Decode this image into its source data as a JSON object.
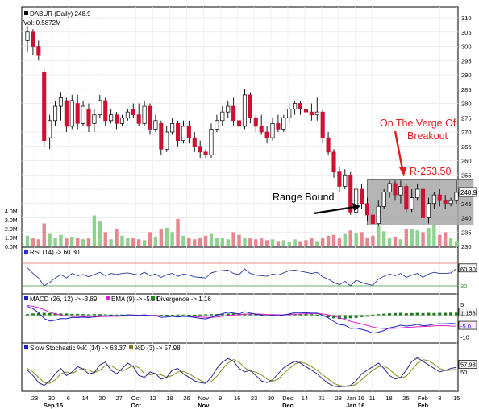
{
  "chart_data": [
    {
      "type": "candlestick",
      "panel": "price",
      "title": "DABUR (Daily) 248.9",
      "volume_label": "Vol: 0.5872M",
      "ylim": [
        230,
        310
      ],
      "y_ticks": [
        230,
        235,
        240,
        245,
        250,
        255,
        260,
        265,
        270,
        275,
        280,
        285,
        290,
        295,
        300,
        305,
        310
      ],
      "last_price_badge": "248.9",
      "volume_ticks": [
        "4.0M",
        "3.0M",
        "2.0M",
        "1.0M",
        "0.0M"
      ],
      "volume_ylim": [
        0,
        4.0
      ],
      "range_box": {
        "x_from": 61,
        "x_to": 80,
        "y_from": 237.5,
        "y_to": 253.5
      },
      "annotations": {
        "range": "Range Bound",
        "resistance": "R-253.50",
        "breakout_line1": "On The Verge Of",
        "breakout_line2": "Breakout"
      },
      "candles": [
        {
          "o": 302,
          "h": 307,
          "l": 298,
          "c": 305
        },
        {
          "o": 305,
          "h": 306,
          "l": 297,
          "c": 300
        },
        {
          "o": 300,
          "h": 302,
          "l": 295,
          "c": 297
        },
        {
          "o": 291,
          "h": 292,
          "l": 265,
          "c": 267
        },
        {
          "o": 268,
          "h": 276,
          "l": 264,
          "c": 274
        },
        {
          "o": 274,
          "h": 281,
          "l": 272,
          "c": 279
        },
        {
          "o": 279,
          "h": 284,
          "l": 274,
          "c": 282
        },
        {
          "o": 281,
          "h": 282,
          "l": 270,
          "c": 272
        },
        {
          "o": 272,
          "h": 283,
          "l": 271,
          "c": 281
        },
        {
          "o": 280,
          "h": 283,
          "l": 271,
          "c": 273
        },
        {
          "o": 273,
          "h": 281,
          "l": 272,
          "c": 279
        },
        {
          "o": 278,
          "h": 280,
          "l": 270,
          "c": 272
        },
        {
          "o": 273,
          "h": 278,
          "l": 270,
          "c": 276
        },
        {
          "o": 276,
          "h": 283,
          "l": 275,
          "c": 281
        },
        {
          "o": 281,
          "h": 282,
          "l": 272,
          "c": 274
        },
        {
          "o": 274,
          "h": 278,
          "l": 273,
          "c": 276
        },
        {
          "o": 276,
          "h": 277,
          "l": 271,
          "c": 273
        },
        {
          "o": 273,
          "h": 276,
          "l": 272,
          "c": 275
        },
        {
          "o": 275,
          "h": 278,
          "l": 274,
          "c": 277
        },
        {
          "o": 278,
          "h": 280,
          "l": 275,
          "c": 276
        },
        {
          "o": 276,
          "h": 280,
          "l": 272,
          "c": 273
        },
        {
          "o": 273,
          "h": 281,
          "l": 272,
          "c": 279
        },
        {
          "o": 279,
          "h": 280,
          "l": 269,
          "c": 271
        },
        {
          "o": 271,
          "h": 276,
          "l": 270,
          "c": 274
        },
        {
          "o": 273,
          "h": 274,
          "l": 262,
          "c": 264
        },
        {
          "o": 264,
          "h": 272,
          "l": 263,
          "c": 270
        },
        {
          "o": 270,
          "h": 275,
          "l": 269,
          "c": 273
        },
        {
          "o": 273,
          "h": 274,
          "l": 265,
          "c": 267
        },
        {
          "o": 267,
          "h": 274,
          "l": 266,
          "c": 272
        },
        {
          "o": 272,
          "h": 274,
          "l": 266,
          "c": 268
        },
        {
          "o": 268,
          "h": 270,
          "l": 263,
          "c": 265
        },
        {
          "o": 265,
          "h": 267,
          "l": 261,
          "c": 263
        },
        {
          "o": 263,
          "h": 264,
          "l": 261,
          "c": 262
        },
        {
          "o": 262,
          "h": 273,
          "l": 261,
          "c": 271
        },
        {
          "o": 271,
          "h": 276,
          "l": 270,
          "c": 274
        },
        {
          "o": 274,
          "h": 279,
          "l": 272,
          "c": 277
        },
        {
          "o": 277,
          "h": 281,
          "l": 275,
          "c": 279
        },
        {
          "o": 279,
          "h": 282,
          "l": 272,
          "c": 274
        },
        {
          "o": 274,
          "h": 276,
          "l": 270,
          "c": 272
        },
        {
          "o": 272,
          "h": 285,
          "l": 271,
          "c": 283
        },
        {
          "o": 283,
          "h": 284,
          "l": 273,
          "c": 275
        },
        {
          "o": 275,
          "h": 276,
          "l": 270,
          "c": 272
        },
        {
          "o": 272,
          "h": 276,
          "l": 269,
          "c": 270
        },
        {
          "o": 270,
          "h": 272,
          "l": 266,
          "c": 268
        },
        {
          "o": 268,
          "h": 275,
          "l": 267,
          "c": 273
        },
        {
          "o": 273,
          "h": 276,
          "l": 270,
          "c": 271
        },
        {
          "o": 271,
          "h": 276,
          "l": 270,
          "c": 275
        },
        {
          "o": 275,
          "h": 280,
          "l": 273,
          "c": 278
        },
        {
          "o": 278,
          "h": 281,
          "l": 276,
          "c": 280
        },
        {
          "o": 280,
          "h": 281,
          "l": 276,
          "c": 278
        },
        {
          "o": 278,
          "h": 282,
          "l": 276,
          "c": 277
        },
        {
          "o": 277,
          "h": 280,
          "l": 274,
          "c": 276
        },
        {
          "o": 276,
          "h": 282,
          "l": 274,
          "c": 277
        },
        {
          "o": 277,
          "h": 278,
          "l": 266,
          "c": 268
        },
        {
          "o": 268,
          "h": 270,
          "l": 262,
          "c": 263
        },
        {
          "o": 263,
          "h": 264,
          "l": 254,
          "c": 256
        },
        {
          "o": 256,
          "h": 258,
          "l": 249,
          "c": 251
        },
        {
          "o": 251,
          "h": 257,
          "l": 250,
          "c": 255
        },
        {
          "o": 255,
          "h": 256,
          "l": 241,
          "c": 242
        },
        {
          "o": 242,
          "h": 252,
          "l": 240,
          "c": 250
        },
        {
          "o": 250,
          "h": 252,
          "l": 243,
          "c": 245
        },
        {
          "o": 245,
          "h": 247,
          "l": 239,
          "c": 241
        },
        {
          "o": 241,
          "h": 243,
          "l": 237,
          "c": 238
        },
        {
          "o": 238,
          "h": 246,
          "l": 237,
          "c": 244
        },
        {
          "o": 244,
          "h": 250,
          "l": 243,
          "c": 249
        },
        {
          "o": 249,
          "h": 253,
          "l": 247,
          "c": 252
        },
        {
          "o": 252,
          "h": 253,
          "l": 246,
          "c": 248
        },
        {
          "o": 248,
          "h": 253,
          "l": 245,
          "c": 251
        },
        {
          "o": 251,
          "h": 252,
          "l": 242,
          "c": 243
        },
        {
          "o": 243,
          "h": 250,
          "l": 242,
          "c": 247
        },
        {
          "o": 247,
          "h": 252,
          "l": 246,
          "c": 250
        },
        {
          "o": 250,
          "h": 252,
          "l": 239,
          "c": 240
        },
        {
          "o": 240,
          "h": 247,
          "l": 238,
          "c": 245
        },
        {
          "o": 245,
          "h": 249,
          "l": 243,
          "c": 248
        },
        {
          "o": 248,
          "h": 250,
          "l": 244,
          "c": 246
        },
        {
          "o": 246,
          "h": 248,
          "l": 243,
          "c": 245
        },
        {
          "o": 245,
          "h": 247,
          "l": 244,
          "c": 246
        },
        {
          "o": 246,
          "h": 253,
          "l": 245,
          "c": 248.9
        }
      ],
      "volume": [
        1.2,
        0.9,
        0.8,
        2.6,
        1.4,
        1.0,
        1.3,
        0.9,
        1.1,
        1.0,
        0.8,
        0.9,
        3.5,
        2.9,
        1.6,
        0.8,
        2.0,
        1.2,
        1.0,
        0.9,
        0.8,
        0.7,
        1.6,
        1.1,
        1.9,
        2.1,
        1.6,
        3.1,
        1.2,
        1.0,
        0.8,
        0.9,
        1.2,
        1.4,
        1.0,
        0.9,
        0.8,
        1.6,
        1.3,
        1.0,
        0.9,
        0.8,
        0.9,
        0.7,
        0.8,
        0.6,
        0.7,
        0.5,
        0.8,
        0.6,
        0.7,
        0.9,
        0.6,
        1.0,
        1.2,
        1.3,
        0.9,
        1.4,
        1.8,
        1.5,
        1.6,
        1.0,
        1.2,
        2.3,
        1.7,
        0.9,
        1.1,
        0.8,
        1.9,
        2.0,
        1.8,
        1.6,
        2.1,
        2.4,
        1.3,
        1.6,
        0.9,
        0.6
      ],
      "x_tick_labels": [
        "23",
        "30",
        "6",
        "14",
        "20",
        "27",
        "Oct",
        "12",
        "18",
        "26",
        "Nov",
        "9",
        "16",
        "23",
        "30",
        "Dec",
        "14",
        "21",
        "28",
        "Jan 16",
        "11",
        "18",
        "25",
        "Feb",
        "8",
        "15"
      ],
      "month_labels": [
        {
          "text": "Sep 15",
          "after": "30"
        },
        {
          "text": "Oct",
          "at": "Oct"
        },
        {
          "text": "Nov",
          "at": "Nov"
        },
        {
          "text": "Dec",
          "at": "Dec"
        },
        {
          "text": "Jan 16",
          "at": "Jan 16"
        },
        {
          "text": "Feb",
          "at": "Feb"
        }
      ]
    },
    {
      "type": "line",
      "panel": "rsi",
      "legend": "RSI (14) -> 60.30",
      "ylim": [
        30,
        70
      ],
      "y_ticks": [
        "60.30",
        "30"
      ],
      "levels": [
        70,
        30
      ],
      "values": [
        62,
        52,
        44,
        30,
        36,
        44,
        50,
        44,
        52,
        48,
        50,
        46,
        50,
        54,
        48,
        52,
        50,
        52,
        53,
        51,
        49,
        54,
        48,
        51,
        45,
        50,
        52,
        47,
        51,
        49,
        46,
        45,
        44,
        53,
        56,
        57,
        58,
        52,
        50,
        60,
        52,
        49,
        48,
        47,
        51,
        49,
        53,
        57,
        58,
        56,
        54,
        52,
        54,
        46,
        42,
        36,
        32,
        38,
        30,
        40,
        36,
        33,
        31,
        42,
        47,
        51,
        48,
        52,
        45,
        49,
        52,
        45,
        51,
        54,
        52,
        52,
        53,
        60.3
      ]
    },
    {
      "type": "line",
      "panel": "macd",
      "legend_macd": "MACD (26, 12) -> -3.89",
      "legend_ema": "EMA (9) -> -5.04",
      "legend_div": "Divergence -> 1.16",
      "ylim": [
        -12,
        5
      ],
      "y_ticks": [
        "5",
        "1.158",
        "-5.0",
        "-10"
      ],
      "macd": [
        4.0,
        3.0,
        1.2,
        -1.5,
        -2.7,
        -2.3,
        -1.5,
        -1.6,
        -1.0,
        -1.1,
        -0.9,
        -1.1,
        -0.8,
        -0.2,
        -0.4,
        -0.1,
        -0.3,
        -0.1,
        0.2,
        0.1,
        -0.1,
        0.2,
        -0.3,
        -0.2,
        -1.0,
        -0.8,
        -0.5,
        -0.8,
        -0.5,
        -0.7,
        -1.0,
        -1.4,
        -1.7,
        -1.0,
        0.0,
        0.7,
        1.4,
        1.0,
        0.6,
        1.6,
        1.0,
        0.5,
        0.0,
        -0.3,
        0.0,
        -0.2,
        0.1,
        0.6,
        1.2,
        1.2,
        1.1,
        1.0,
        1.0,
        0.0,
        -1.2,
        -2.9,
        -4.3,
        -4.6,
        -6.1,
        -5.9,
        -6.5,
        -7.2,
        -8.2,
        -7.8,
        -7.0,
        -5.8,
        -5.3,
        -4.6,
        -5.0,
        -4.7,
        -4.2,
        -4.9,
        -4.6,
        -4.1,
        -3.9,
        -3.9,
        -3.8,
        -3.89
      ],
      "ema": [
        4.5,
        4.1,
        3.5,
        2.5,
        1.4,
        0.6,
        0.0,
        -0.3,
        -0.5,
        -0.6,
        -0.7,
        -0.8,
        -0.8,
        -0.7,
        -0.6,
        -0.5,
        -0.5,
        -0.4,
        -0.3,
        -0.2,
        -0.2,
        -0.1,
        -0.1,
        -0.1,
        -0.3,
        -0.4,
        -0.4,
        -0.5,
        -0.5,
        -0.5,
        -0.6,
        -0.8,
        -1.0,
        -1.0,
        -0.8,
        -0.5,
        -0.1,
        0.1,
        0.2,
        0.5,
        0.6,
        0.6,
        0.5,
        0.3,
        0.3,
        0.2,
        0.2,
        0.3,
        0.5,
        0.6,
        0.7,
        0.8,
        0.8,
        0.6,
        0.2,
        -0.4,
        -1.2,
        -1.9,
        -2.8,
        -3.4,
        -4.0,
        -4.7,
        -5.4,
        -5.9,
        -6.1,
        -6.1,
        -6.0,
        -5.8,
        -5.6,
        -5.5,
        -5.3,
        -5.2,
        -5.1,
        -4.9,
        -4.8,
        -4.8,
        -5.0,
        -5.04
      ],
      "divergence": [
        0.5,
        0.8,
        1.0,
        1.1,
        1.0,
        1.0,
        0.8,
        0.8,
        0.6,
        0.6,
        0.5,
        0.4,
        0.5,
        0.5,
        0.4,
        0.3,
        0.3,
        0.3,
        0.3,
        0.2,
        0.2,
        0.2,
        0.1,
        0.1,
        0.2,
        0.2,
        0.2,
        0.3,
        0.3,
        0.2,
        0.2,
        0.3,
        0.4,
        0.5,
        0.5,
        0.6,
        0.8,
        0.8,
        0.6,
        0.7,
        0.6,
        0.5,
        0.5,
        0.4,
        0.4,
        0.4,
        0.4,
        0.6,
        0.7,
        0.7,
        0.6,
        0.5,
        0.3,
        -0.5,
        -1.0,
        -1.4,
        -1.7,
        -1.6,
        -1.4,
        -1.2,
        -0.9,
        -0.7,
        0.3,
        0.5,
        0.7,
        0.9,
        1.0,
        1.1,
        0.9,
        1.0,
        1.1,
        1.0,
        1.1,
        1.0,
        1.1,
        1.1,
        1.2,
        1.16
      ]
    },
    {
      "type": "line",
      "panel": "stochastic",
      "legend_k": "Slow Stochastic %K (14) -> 63.37",
      "legend_d": "%D (3) -> 57.98",
      "ylim": [
        0,
        100
      ],
      "y_ticks": [
        "50",
        "57.98"
      ],
      "k": [
        55,
        40,
        20,
        12,
        25,
        45,
        60,
        40,
        50,
        65,
        58,
        45,
        48,
        70,
        78,
        55,
        45,
        60,
        75,
        65,
        40,
        35,
        50,
        45,
        30,
        35,
        55,
        60,
        45,
        35,
        25,
        20,
        18,
        35,
        60,
        78,
        88,
        80,
        60,
        50,
        55,
        40,
        25,
        20,
        28,
        45,
        62,
        72,
        80,
        75,
        65,
        55,
        45,
        30,
        18,
        10,
        8,
        10,
        12,
        25,
        45,
        55,
        65,
        75,
        60,
        40,
        30,
        35,
        55,
        80,
        90,
        80,
        70,
        60,
        50,
        55,
        60,
        63.37
      ],
      "d": [
        60,
        50,
        35,
        20,
        18,
        28,
        45,
        50,
        45,
        55,
        60,
        55,
        48,
        55,
        68,
        68,
        58,
        52,
        60,
        68,
        62,
        45,
        42,
        45,
        42,
        35,
        40,
        50,
        52,
        45,
        35,
        27,
        20,
        23,
        38,
        58,
        75,
        85,
        78,
        62,
        52,
        50,
        42,
        30,
        23,
        30,
        45,
        60,
        72,
        78,
        74,
        65,
        55,
        42,
        30,
        18,
        12,
        9,
        10,
        15,
        28,
        42,
        55,
        65,
        67,
        58,
        42,
        33,
        38,
        56,
        75,
        85,
        82,
        72,
        60,
        54,
        55,
        57.98
      ]
    }
  ]
}
